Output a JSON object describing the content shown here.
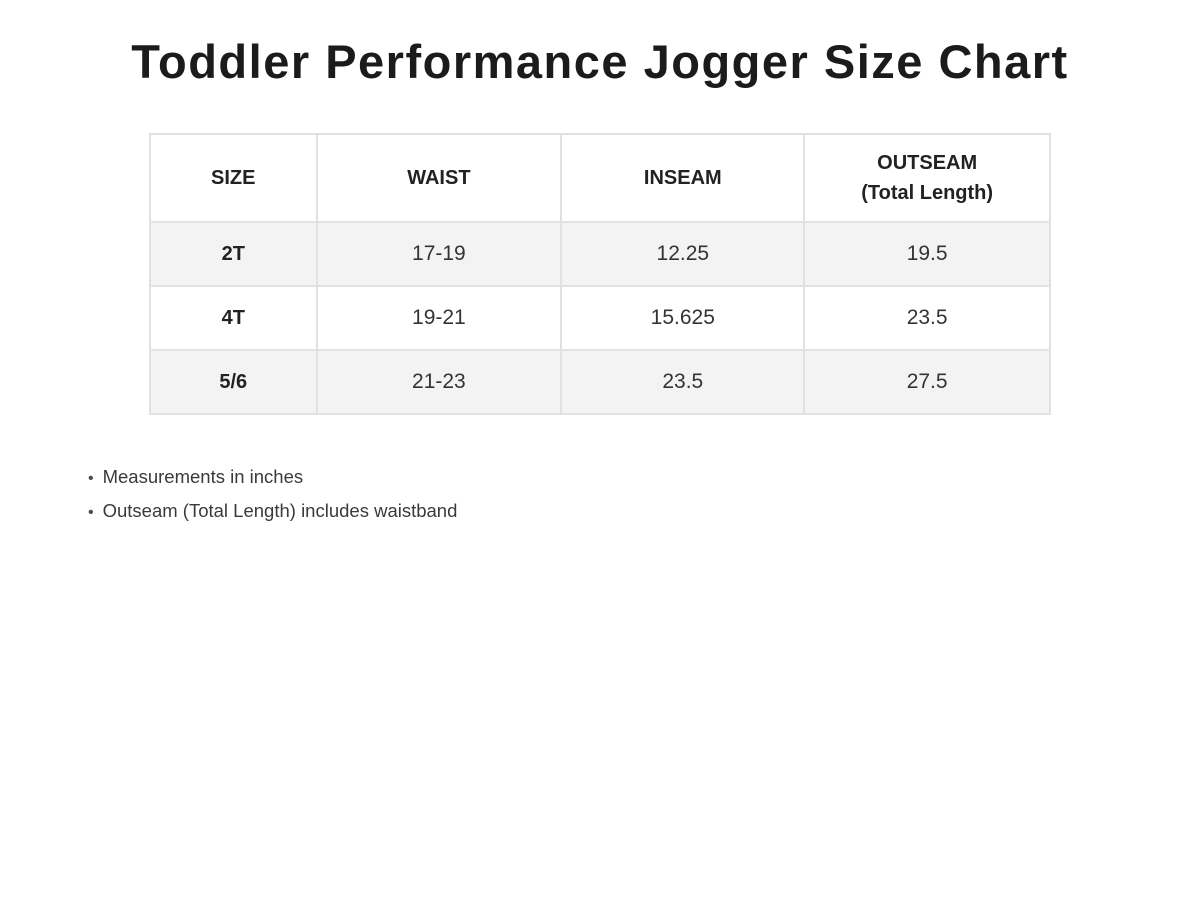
{
  "page": {
    "title": "Toddler Performance Jogger Size Chart"
  },
  "table": {
    "headers": [
      {
        "label": "SIZE"
      },
      {
        "label": "WAIST"
      },
      {
        "label": "INSEAM"
      },
      {
        "label": "OUTSEAM",
        "sublabel": "(Total Length)"
      }
    ],
    "rows": [
      {
        "size": "2T",
        "waist": "17-19",
        "inseam": "12.25",
        "outseam": "19.5"
      },
      {
        "size": "4T",
        "waist": "19-21",
        "inseam": "15.625",
        "outseam": "23.5"
      },
      {
        "size": "5/6",
        "waist": "21-23",
        "inseam": "23.5",
        "outseam": "27.5"
      }
    ]
  },
  "notes": {
    "bullet": "•",
    "items": [
      "Measurements in inches",
      "Outseam (Total Length) includes waistband"
    ]
  },
  "colors": {
    "row_shade": "#f3f3f3",
    "border": "#e1e1e1",
    "outer_border": "#d6d6d6",
    "title_text": "#1b1b1b",
    "body_text": "#333333"
  },
  "chart_data": {
    "type": "table",
    "title": "Toddler Performance Jogger Size Chart",
    "columns": [
      "SIZE",
      "WAIST",
      "INSEAM",
      "OUTSEAM (Total Length)"
    ],
    "rows": [
      [
        "2T",
        "17-19",
        "12.25",
        "19.5"
      ],
      [
        "4T",
        "19-21",
        "15.625",
        "23.5"
      ],
      [
        "5/6",
        "21-23",
        "23.5",
        "27.5"
      ]
    ],
    "notes": [
      "Measurements in inches",
      "Outseam (Total Length) includes waistband"
    ]
  }
}
